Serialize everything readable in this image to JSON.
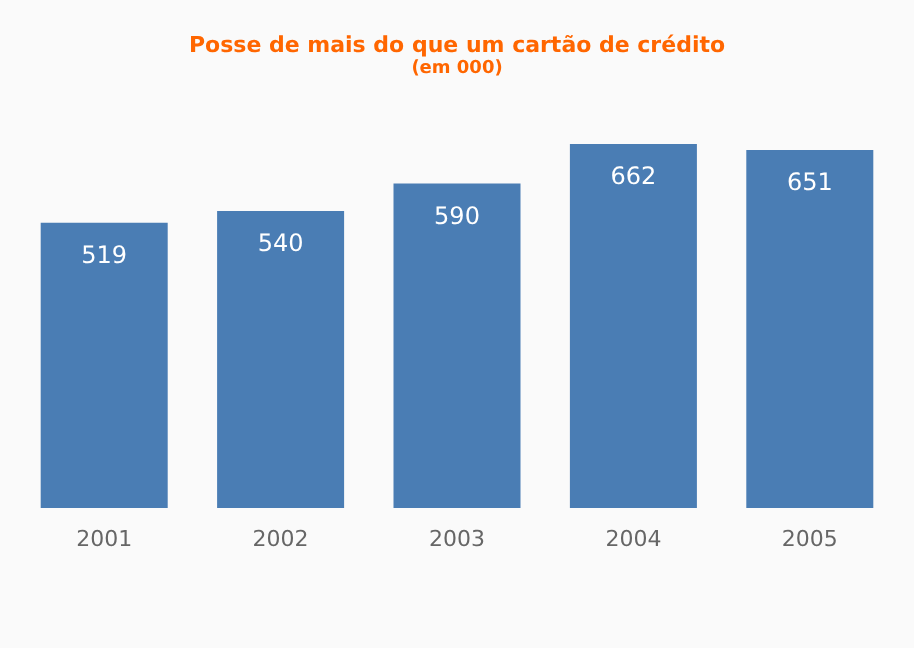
{
  "chart_data": {
    "type": "bar",
    "title": "Posse de mais do que um cartão de crédito",
    "subtitle": "(em 000)",
    "categories": [
      "2001",
      "2002",
      "2003",
      "2004",
      "2005"
    ],
    "values": [
      519,
      540,
      590,
      662,
      651
    ],
    "color": "#4a7db4",
    "data_labels": true
  }
}
